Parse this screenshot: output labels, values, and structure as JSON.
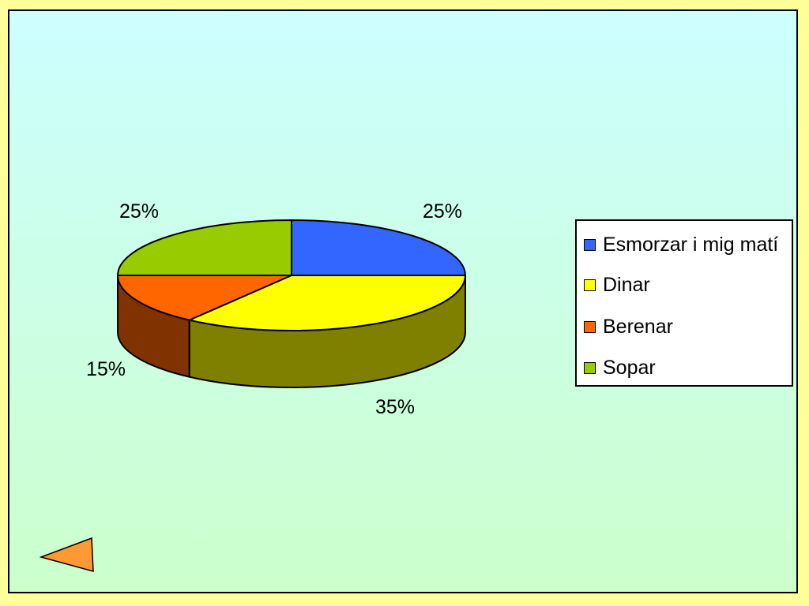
{
  "chart_data": {
    "type": "pie",
    "three_d": true,
    "slices": [
      {
        "label": "Esmorzar i mig matí",
        "value": 25,
        "display": "25%",
        "color": "#3366ff",
        "side_color": "#1a338a"
      },
      {
        "label": "Dinar",
        "value": 35,
        "display": "35%",
        "color": "#ffff00",
        "side_color": "#808000"
      },
      {
        "label": "Berenar",
        "value": 15,
        "display": "15%",
        "color": "#ff6600",
        "side_color": "#803300"
      },
      {
        "label": "Sopar",
        "value": 25,
        "display": "25%",
        "color": "#99cc00",
        "side_color": "#4d6600"
      }
    ],
    "legend_position": "right"
  },
  "navigation": {
    "back_icon": "triangle-left-icon",
    "back_color": "#ff9933"
  },
  "colors": {
    "frame_background": "#ffff99",
    "slide_gradient_top": "#ccffff",
    "slide_gradient_bottom": "#ccffcc"
  }
}
